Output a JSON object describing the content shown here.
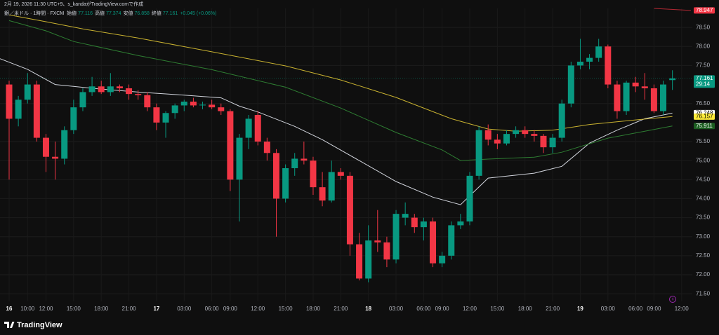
{
  "header": {
    "created": "2月 19, 2026 11:30 UTC+9、s_kandaがTradingView.comで作成",
    "symbol": "銀／米ドル · 1時間 · FXCM",
    "ohlc": [
      {
        "label": "始値",
        "value": "77.116"
      },
      {
        "label": "高値",
        "value": "77.374"
      },
      {
        "label": "安値",
        "value": "76.858"
      },
      {
        "label": "終値",
        "value": "77.161"
      }
    ],
    "change": "+0.045 (+0.06%)"
  },
  "brand": "TradingView",
  "chart_data": {
    "type": "candlestick",
    "categories": [
      "16",
      null,
      "10:00",
      null,
      "12:00",
      null,
      null,
      "15:00",
      null,
      null,
      "18:00",
      null,
      null,
      "21:00",
      null,
      null,
      "17",
      null,
      null,
      "03:00",
      null,
      null,
      "06:00",
      null,
      "09:00",
      null,
      null,
      "12:00",
      null,
      null,
      "15:00",
      null,
      null,
      "18:00",
      null,
      null,
      "21:00",
      null,
      null,
      "18",
      null,
      null,
      "03:00",
      null,
      null,
      "06:00",
      null,
      "09:00",
      null,
      null,
      "12:00",
      null,
      null,
      "15:00",
      null,
      null,
      "18:00",
      null,
      null,
      "21:00",
      null,
      null,
      "19",
      null,
      null,
      "03:00",
      null,
      null,
      "06:00",
      null,
      "09:00",
      null,
      null,
      "12:00"
    ],
    "open": [
      77.0,
      76.1,
      76.6,
      77.0,
      75.6,
      75.1,
      75.05,
      75.8,
      76.4,
      76.8,
      76.95,
      76.8,
      76.95,
      76.9,
      76.75,
      76.72,
      76.4,
      76.0,
      76.25,
      76.45,
      76.55,
      76.45,
      76.47,
      76.4,
      76.3,
      74.5,
      75.6,
      76.2,
      75.5,
      75.2,
      74.0,
      74.8,
      75.05,
      75.0,
      74.3,
      73.95,
      74.7,
      74.6,
      72.8,
      71.9,
      72.9,
      72.85,
      72.4,
      73.5,
      73.5,
      73.25,
      73.4,
      72.3,
      72.5,
      73.3,
      73.4,
      74.6,
      75.8,
      75.55,
      75.45,
      75.7,
      75.8,
      75.7,
      75.65,
      75.35,
      75.6,
      76.5,
      77.5,
      77.6,
      77.7,
      78.0,
      77.0,
      76.3,
      77.05,
      76.95,
      76.9,
      76.3,
      77.116,
      null
    ],
    "high": [
      77.1,
      76.7,
      77.3,
      77.1,
      75.7,
      75.5,
      75.9,
      76.6,
      76.9,
      77.2,
      77.1,
      77.3,
      77.0,
      77.0,
      76.85,
      76.8,
      76.5,
      76.3,
      76.5,
      76.6,
      76.65,
      76.55,
      76.6,
      76.5,
      76.35,
      75.7,
      76.2,
      76.3,
      75.6,
      75.3,
      74.9,
      75.2,
      75.5,
      75.1,
      74.7,
      75.0,
      74.8,
      74.7,
      73.1,
      73.3,
      73.7,
      73.0,
      73.7,
      73.9,
      73.6,
      73.5,
      73.5,
      72.6,
      73.4,
      73.6,
      74.7,
      75.9,
      75.95,
      75.7,
      75.8,
      75.9,
      75.9,
      75.8,
      75.7,
      75.7,
      76.6,
      77.6,
      78.2,
      77.8,
      78.2,
      78.05,
      77.1,
      77.1,
      77.2,
      77.3,
      77.0,
      77.1,
      77.374,
      null
    ],
    "low": [
      74.5,
      75.9,
      76.5,
      75.5,
      74.7,
      74.5,
      74.9,
      75.7,
      76.3,
      76.7,
      76.75,
      76.7,
      76.8,
      76.6,
      76.6,
      76.3,
      75.8,
      75.6,
      76.1,
      76.3,
      76.4,
      76.35,
      76.35,
      76.2,
      74.2,
      73.4,
      75.3,
      75.4,
      75.0,
      73.0,
      73.9,
      74.6,
      74.9,
      74.1,
      73.8,
      73.9,
      74.5,
      72.5,
      71.85,
      71.8,
      72.6,
      72.2,
      72.3,
      73.3,
      73.1,
      72.9,
      72.2,
      72.2,
      72.4,
      73.2,
      73.3,
      74.5,
      75.4,
      75.3,
      75.4,
      75.6,
      75.6,
      75.5,
      75.2,
      75.2,
      75.5,
      76.4,
      77.4,
      77.4,
      77.6,
      76.9,
      76.1,
      76.2,
      76.8,
      76.6,
      76.25,
      76.2,
      76.858,
      null
    ],
    "close": [
      76.1,
      76.6,
      77.0,
      75.6,
      75.1,
      75.05,
      75.8,
      76.4,
      76.8,
      76.95,
      76.8,
      76.95,
      76.9,
      76.75,
      76.72,
      76.4,
      76.0,
      76.25,
      76.45,
      76.55,
      76.45,
      76.47,
      76.4,
      76.3,
      74.5,
      75.6,
      76.1,
      75.5,
      75.2,
      74.0,
      74.8,
      75.05,
      75.0,
      74.3,
      73.95,
      74.7,
      74.6,
      72.8,
      71.9,
      72.9,
      72.85,
      72.4,
      73.6,
      73.6,
      73.25,
      73.4,
      72.3,
      72.5,
      73.3,
      73.4,
      74.6,
      75.8,
      75.55,
      75.45,
      75.7,
      75.8,
      75.7,
      75.65,
      75.35,
      75.6,
      76.5,
      77.5,
      77.6,
      77.7,
      78.0,
      77.0,
      76.3,
      77.05,
      76.95,
      76.9,
      76.3,
      77.0,
      77.161,
      null
    ],
    "up_color": "#089981",
    "down_color": "#f23645",
    "lines": [
      {
        "color": "#d1d4dc",
        "x": [
          -1,
          2,
          5,
          9,
          14,
          19,
          23,
          25,
          27,
          31,
          34,
          38,
          42,
          46,
          49,
          52,
          57,
          60,
          63,
          66,
          69,
          72
        ],
        "values": [
          77.68,
          77.4,
          77.0,
          76.9,
          76.8,
          76.72,
          76.65,
          76.43,
          76.28,
          75.9,
          75.55,
          75.0,
          74.45,
          74.04,
          73.84,
          74.54,
          74.67,
          74.85,
          75.46,
          75.8,
          76.1,
          76.248
        ]
      },
      {
        "color": "#c9b230",
        "x": [
          0,
          4,
          8,
          14,
          22,
          30,
          36,
          42,
          48,
          52,
          55,
          59,
          63,
          68,
          72
        ],
        "values": [
          78.83,
          78.65,
          78.46,
          78.22,
          77.86,
          77.49,
          77.12,
          76.66,
          76.1,
          75.83,
          75.77,
          75.8,
          75.95,
          76.07,
          76.157
        ]
      },
      {
        "color": "#2e7d32",
        "x": [
          0,
          4,
          7,
          14,
          22,
          30,
          36,
          42,
          47,
          49,
          52,
          57,
          60,
          65,
          69,
          72
        ],
        "values": [
          78.68,
          78.41,
          78.13,
          77.76,
          77.39,
          76.93,
          76.38,
          75.74,
          75.28,
          75.0,
          75.04,
          75.09,
          75.22,
          75.59,
          75.77,
          75.911
        ]
      },
      {
        "color": "#b22833",
        "x": [
          70,
          74
        ],
        "values": [
          79.0,
          78.947
        ]
      }
    ],
    "price_labels": [
      {
        "value": 78.947,
        "color": "#f23645",
        "text_color": "#ffffff"
      },
      {
        "value": 77.161,
        "color": "#089981",
        "text_color": "#ffffff",
        "countdown": "29:14"
      },
      {
        "value": 76.248,
        "color": "#ffffff",
        "text_color": "#000000"
      },
      {
        "value": 76.157,
        "color": "#ffeb3b",
        "text_color": "#000000"
      },
      {
        "value": 75.911,
        "color": "#1b5e20",
        "text_color": "#ffffff"
      }
    ],
    "ylim": [
      71.3,
      79.0
    ],
    "yticks": [
      {
        "value": 71.5,
        "label": "71.50"
      },
      {
        "value": 72,
        "label": "72.00"
      },
      {
        "value": 72.5,
        "label": "72.50"
      },
      {
        "value": 73,
        "label": "73.00"
      },
      {
        "value": 73.5,
        "label": "73.50"
      },
      {
        "value": 74,
        "label": "74.00"
      },
      {
        "value": 74.5,
        "label": "74.50"
      },
      {
        "value": 75,
        "label": "75.00"
      },
      {
        "value": 75.5,
        "label": "75.50"
      },
      {
        "value": 76.5,
        "label": "76.50"
      },
      {
        "value": 77.5,
        "label": "77.50"
      },
      {
        "value": 78,
        "label": "78.00"
      },
      {
        "value": 78.5,
        "label": "78.50"
      }
    ],
    "grid": true
  }
}
